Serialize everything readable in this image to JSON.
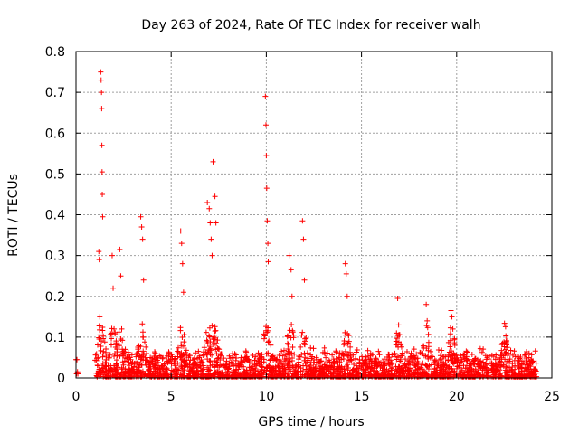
{
  "chart_data": {
    "type": "scatter",
    "title": "Day 263 of 2024, Rate Of TEC Index for receiver walh",
    "xlabel": "GPS time / hours",
    "ylabel": "ROTI / TECUs",
    "xlim": [
      0,
      25
    ],
    "ylim": [
      0,
      0.8
    ],
    "x_ticks": [
      0,
      5,
      10,
      15,
      20,
      25
    ],
    "y_ticks": [
      0,
      0.1,
      0.2,
      0.3,
      0.4,
      0.5,
      0.6,
      0.7,
      0.8
    ],
    "x_tick_labels": [
      "0",
      "5",
      "10",
      "15",
      "20",
      "25"
    ],
    "y_tick_labels": [
      "0",
      "0.1",
      "0.2",
      "0.3",
      "0.4",
      "0.5",
      "0.6",
      "0.7",
      "0.8"
    ],
    "grid": true,
    "marker": "+",
    "color": "#ff0000",
    "series": [
      {
        "name": "ROTI",
        "x": [
          0.0,
          0.03,
          0.05,
          0.08,
          0.1,
          1.3,
          1.32,
          1.34,
          1.35,
          1.36,
          1.37,
          1.38,
          1.4,
          1.2,
          1.22,
          1.25,
          1.9,
          1.95,
          2.0,
          2.3,
          2.35,
          2.4,
          3.4,
          3.45,
          3.5,
          3.55,
          5.5,
          5.55,
          5.6,
          5.65,
          6.9,
          7.0,
          7.05,
          7.1,
          7.15,
          7.2,
          7.3,
          7.35,
          9.95,
          9.98,
          10.0,
          10.02,
          10.05,
          10.08,
          10.1,
          11.2,
          11.3,
          11.35,
          11.9,
          11.95,
          12.0,
          14.15,
          14.2,
          14.25,
          16.9,
          16.95,
          18.4,
          18.45,
          19.7,
          19.75,
          19.8,
          22.5,
          22.55
        ],
        "y": [
          0.045,
          0.01,
          0.045,
          0.015,
          0.01,
          0.75,
          0.73,
          0.7,
          0.66,
          0.57,
          0.505,
          0.45,
          0.395,
          0.31,
          0.29,
          0.15,
          0.3,
          0.22,
          0.12,
          0.315,
          0.25,
          0.12,
          0.395,
          0.37,
          0.34,
          0.24,
          0.36,
          0.33,
          0.28,
          0.21,
          0.43,
          0.415,
          0.38,
          0.34,
          0.3,
          0.53,
          0.445,
          0.38,
          0.69,
          0.62,
          0.545,
          0.465,
          0.385,
          0.33,
          0.285,
          0.3,
          0.265,
          0.2,
          0.385,
          0.34,
          0.24,
          0.28,
          0.255,
          0.2,
          0.195,
          0.13,
          0.18,
          0.14,
          0.165,
          0.15,
          0.12,
          0.085,
          0.06
        ]
      }
    ]
  }
}
